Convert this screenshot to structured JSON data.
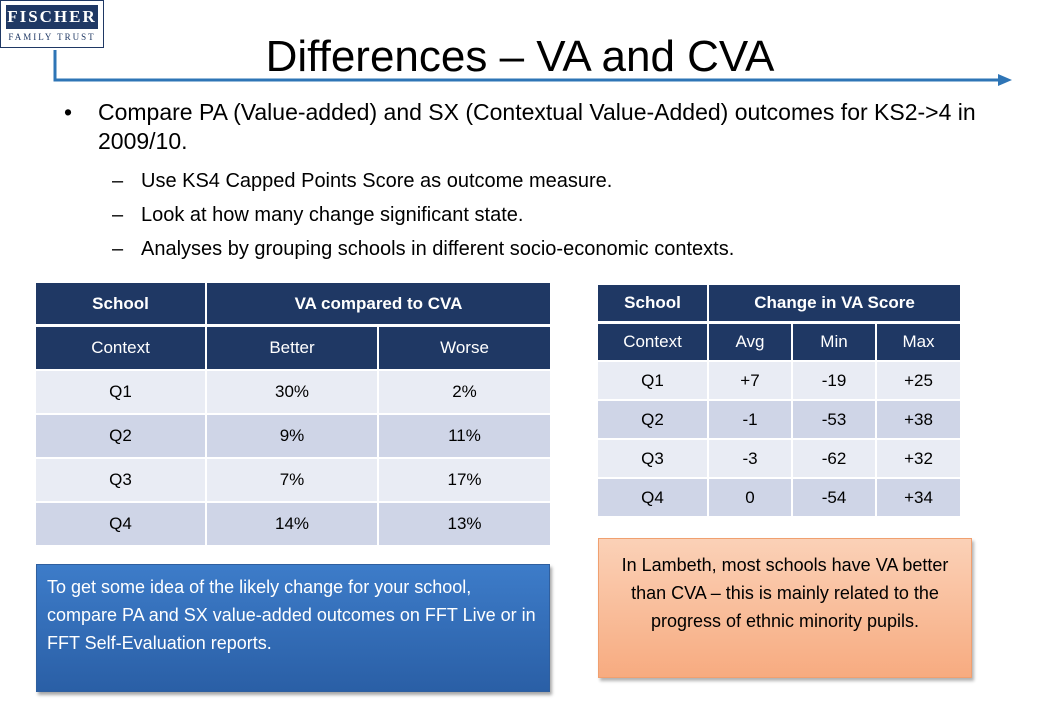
{
  "logo": {
    "top_text": "FISCHER",
    "bottom_text": "FAMILY TRUST"
  },
  "title": "Differences – VA and CVA",
  "bullets": {
    "main": "Compare PA (Value-added) and SX (Contextual Value-Added) outcomes for KS2->4 in 2009/10.",
    "sub": [
      "Use KS4 Capped Points Score as outcome measure.",
      "Look at how many change significant state.",
      "Analyses by grouping schools in different socio-economic contexts."
    ]
  },
  "table_va_cva": {
    "header": [
      "School",
      "VA compared to CVA"
    ],
    "subheader": [
      "Context",
      "Better",
      "Worse"
    ],
    "rows": [
      [
        "Q1",
        "30%",
        "2%"
      ],
      [
        "Q2",
        "9%",
        "11%"
      ],
      [
        "Q3",
        "7%",
        "17%"
      ],
      [
        "Q4",
        "14%",
        "13%"
      ]
    ]
  },
  "table_change": {
    "header": [
      "School",
      "Change in VA Score"
    ],
    "subheader": [
      "Context",
      "Avg",
      "Min",
      "Max"
    ],
    "rows": [
      [
        "Q1",
        "+7",
        "-19",
        "+25"
      ],
      [
        "Q2",
        "-1",
        "-53",
        "+38"
      ],
      [
        "Q3",
        "-3",
        "-62",
        "+32"
      ],
      [
        "Q4",
        "0",
        "-54",
        "+34"
      ]
    ]
  },
  "blue_note": "To get some idea of the likely change for your school, compare PA and SX value-added outcomes on FFT Live or in FFT Self-Evaluation reports.",
  "orange_note": "In Lambeth, most schools have VA better than CVA – this is mainly related to the progress of ethnic minority pupils.",
  "colors": {
    "navy": "#1f3864",
    "accent_line": "#2e75b6",
    "row_light": "#e9ecf4",
    "row_dark": "#cfd5e7",
    "note_blue": "#3d7cc9",
    "note_orange": "#f9bf9a"
  }
}
